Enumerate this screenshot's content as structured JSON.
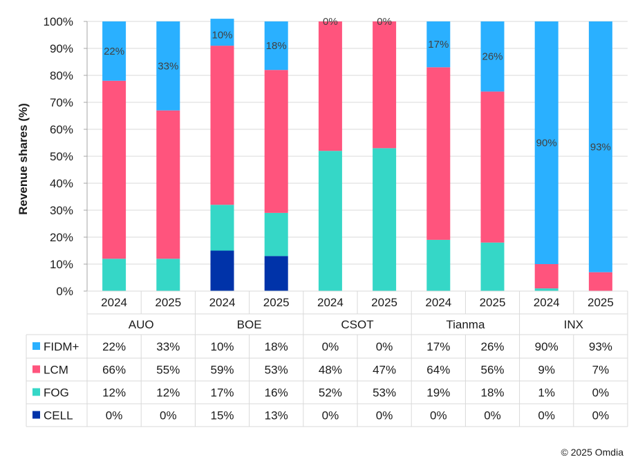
{
  "chart_data": {
    "type": "bar",
    "stacked": true,
    "ylabel": "Revenue shares (%)",
    "ylim": [
      0,
      100
    ],
    "yticks": [
      "0%",
      "10%",
      "20%",
      "30%",
      "40%",
      "50%",
      "60%",
      "70%",
      "80%",
      "90%",
      "100%"
    ],
    "grid": true,
    "groups": [
      "AUO",
      "BOE",
      "CSOT",
      "Tianma",
      "INX"
    ],
    "years": [
      "2024",
      "2025"
    ],
    "series": [
      {
        "name": "CELL",
        "color": "#0033A9",
        "values": [
          0,
          0,
          15,
          13,
          0,
          0,
          0,
          0,
          0,
          0
        ]
      },
      {
        "name": "FOG",
        "color": "#35D7C7",
        "values": [
          12,
          12,
          17,
          16,
          52,
          53,
          19,
          18,
          1,
          0
        ]
      },
      {
        "name": "LCM",
        "color": "#FF547D",
        "values": [
          66,
          55,
          59,
          53,
          48,
          47,
          64,
          56,
          9,
          7
        ]
      },
      {
        "name": "FIDM+",
        "color": "#2AB0FF",
        "values": [
          22,
          33,
          10,
          18,
          0,
          0,
          17,
          26,
          90,
          93
        ]
      }
    ],
    "bar_labels": [
      "22%",
      "33%",
      "10%",
      "18%",
      "0%",
      "0%",
      "17%",
      "26%",
      "90%",
      "93%"
    ],
    "table_rows": [
      {
        "name": "FIDM+",
        "color": "#2AB0FF",
        "cells": [
          "22%",
          "33%",
          "10%",
          "18%",
          "0%",
          "0%",
          "17%",
          "26%",
          "90%",
          "93%"
        ]
      },
      {
        "name": "LCM",
        "color": "#FF547D",
        "cells": [
          "66%",
          "55%",
          "59%",
          "53%",
          "48%",
          "47%",
          "64%",
          "56%",
          "9%",
          "7%"
        ]
      },
      {
        "name": "FOG",
        "color": "#35D7C7",
        "cells": [
          "12%",
          "12%",
          "17%",
          "16%",
          "52%",
          "53%",
          "19%",
          "18%",
          "1%",
          "0%"
        ]
      },
      {
        "name": "CELL",
        "color": "#0033A9",
        "cells": [
          "0%",
          "0%",
          "15%",
          "13%",
          "0%",
          "0%",
          "0%",
          "0%",
          "0%",
          "0%"
        ]
      }
    ]
  },
  "footer": {
    "copyright": "© 2025 Omdia"
  }
}
